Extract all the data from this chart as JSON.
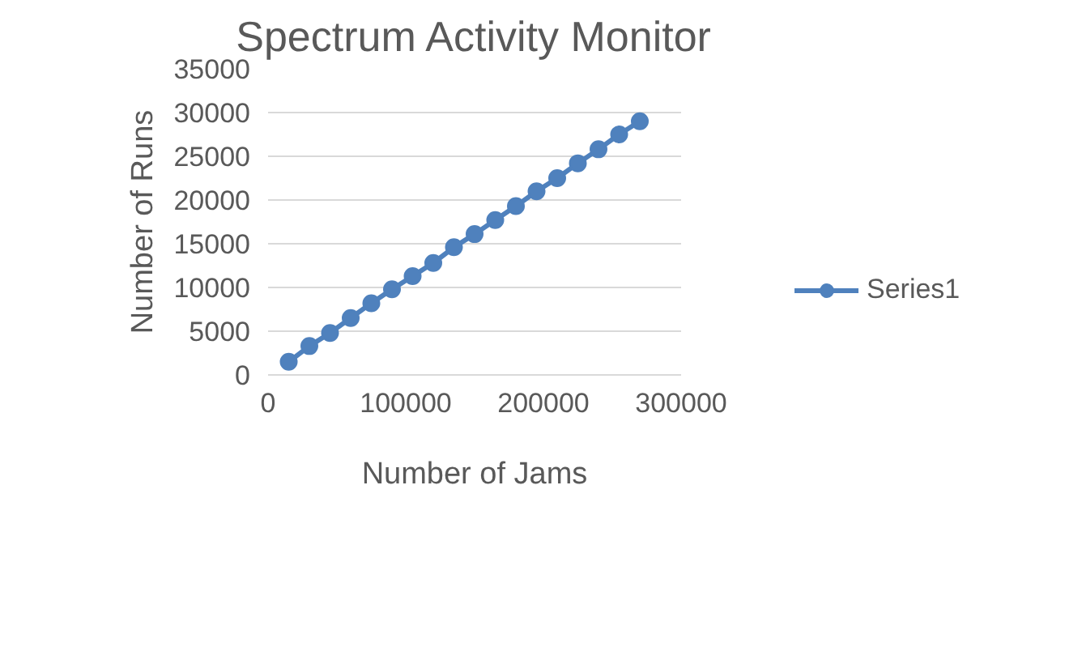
{
  "chart_data": {
    "type": "line",
    "title": "Spectrum Activity Monitor",
    "xlabel": "Number of Jams",
    "ylabel": "Number of Runs",
    "x": [
      15000,
      30000,
      45000,
      60000,
      75000,
      90000,
      105000,
      120000,
      135000,
      150000,
      165000,
      180000,
      195000,
      210000,
      225000,
      240000,
      255000,
      270000
    ],
    "series": [
      {
        "name": "Series1",
        "color": "#4f81bd",
        "values": [
          1500,
          3300,
          4800,
          6500,
          8200,
          9800,
          11300,
          12800,
          14600,
          16100,
          17700,
          19300,
          21000,
          22500,
          24200,
          25800,
          27500,
          29000
        ]
      }
    ],
    "xlim": [
      0,
      300000
    ],
    "xticks": [
      0,
      100000,
      200000,
      300000
    ],
    "ylim": [
      0,
      35000
    ],
    "yticks": [
      0,
      5000,
      10000,
      15000,
      20000,
      25000,
      30000,
      35000
    ],
    "grid": "y",
    "legend": "right",
    "marker": "circle",
    "line_style": "solid"
  }
}
